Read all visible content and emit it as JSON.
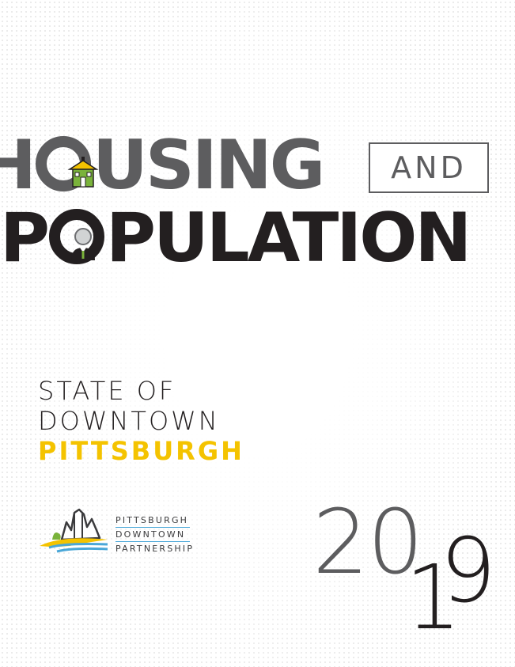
{
  "title": {
    "line1_before": "H",
    "line1_after": "USING",
    "and_label": "AND",
    "line2_before": "P",
    "line2_after": "PULATION"
  },
  "subtitle": {
    "line1": "STATE OF",
    "line2": "DOWNTOWN",
    "line3": "PITTSBURGH"
  },
  "partner": {
    "line1": "PITTSBURGH",
    "line2": "DOWNTOWN",
    "line3": "PARTNERSHIP"
  },
  "year": {
    "top": "20",
    "bottom_one": "1",
    "bottom_nine": "9"
  },
  "colors": {
    "dark_gray": "#5d5d5f",
    "near_black": "#231f20",
    "accent_yellow": "#f4c300",
    "house_green": "#7ab33b",
    "logo_blue": "#4aa7d8"
  },
  "icons": {
    "house": "house-icon",
    "person": "person-icon",
    "partner_logo": "skyline-logo-icon"
  }
}
